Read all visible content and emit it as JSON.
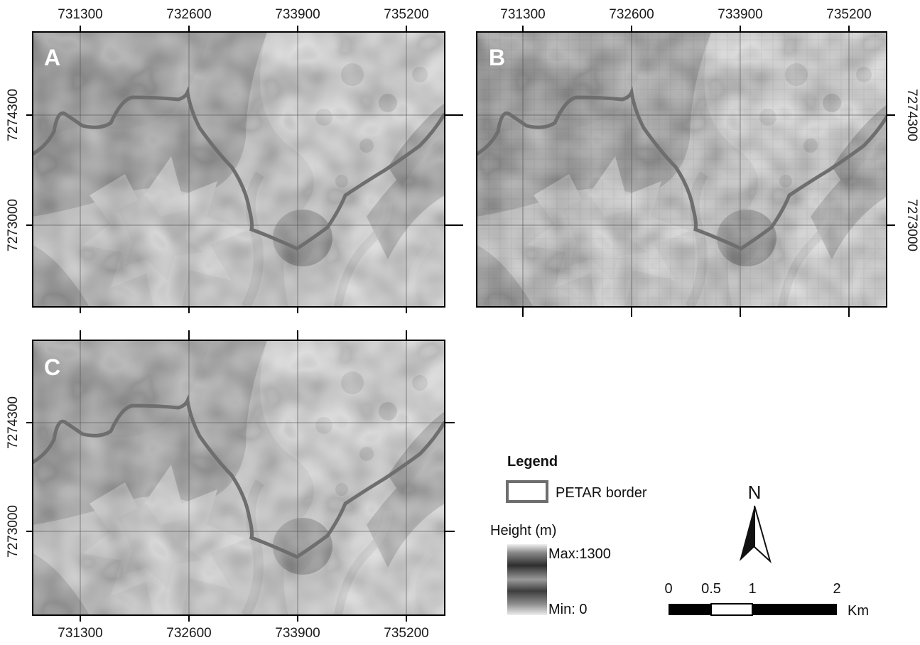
{
  "panels": [
    {
      "id": "A",
      "letter": "A",
      "x_ticks": [
        "731300",
        "732600",
        "733900",
        "735200"
      ],
      "y_ticks": [
        "7274300",
        "7273000"
      ],
      "x_tick_positions": "top",
      "y_tick_positions": "left"
    },
    {
      "id": "B",
      "letter": "B",
      "x_ticks": [
        "731300",
        "732600",
        "733900",
        "735200"
      ],
      "y_ticks": [
        "7274300",
        "7273000"
      ],
      "x_tick_positions": "top",
      "y_tick_positions": "right"
    },
    {
      "id": "C",
      "letter": "C",
      "x_ticks": [
        "731300",
        "732600",
        "733900",
        "735200"
      ],
      "y_ticks": [
        "7274300",
        "7273000"
      ],
      "x_tick_positions": "bottom",
      "y_tick_positions": "left"
    }
  ],
  "legend": {
    "title": "Legend",
    "border_label": "PETAR border",
    "height_title": "Height (m)",
    "max_label": "Max:1300",
    "min_label": "Min: 0"
  },
  "north": {
    "label": "N"
  },
  "scalebar": {
    "labels": [
      "0",
      "0.5",
      "1",
      "2"
    ],
    "unit": "Km"
  },
  "colors": {
    "border_line": "#6e6e6e",
    "frame": "#000000",
    "terrain_dark": "#2b2b2b",
    "terrain_light": "#d9d9d9"
  }
}
